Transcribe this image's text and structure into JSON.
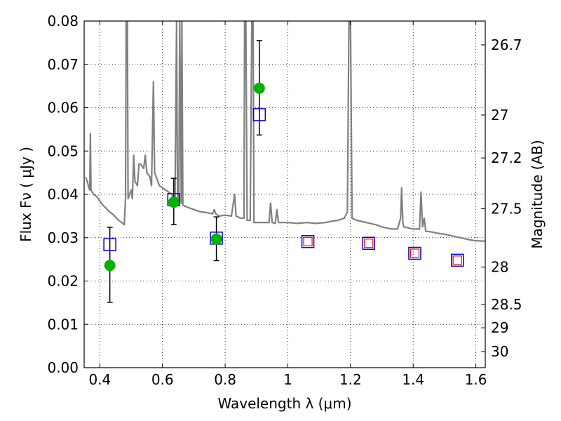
{
  "chart_data": {
    "type": "scatter",
    "xlabel": "Wavelength  λ (μm)",
    "ylabel": "Flux  Fν  ( μJy )",
    "y2label": "Magnitude (AB)",
    "xlim": [
      0.35,
      1.63
    ],
    "ylim": [
      0.0,
      0.08
    ],
    "grid": true,
    "x_ticks": [
      0.4,
      0.6,
      0.8,
      1.0,
      1.2,
      1.4,
      1.6
    ],
    "x_tick_labels": [
      "0.4",
      "0.6",
      "0.8",
      "1",
      "1.2",
      "1.4",
      "1.6"
    ],
    "y_ticks": [
      0.0,
      0.01,
      0.02,
      0.03,
      0.04,
      0.05,
      0.06,
      0.07,
      0.08
    ],
    "y_tick_labels": [
      "0.00",
      "0.01",
      "0.02",
      "0.03",
      "0.04",
      "0.05",
      "0.06",
      "0.07",
      "0.08"
    ],
    "mag_ticks": [
      {
        "label": "26.7",
        "flux": 0.0745
      },
      {
        "label": "27",
        "flux": 0.0583
      },
      {
        "label": "27.2",
        "flux": 0.0484
      },
      {
        "label": "27.5",
        "flux": 0.0367
      },
      {
        "label": "28",
        "flux": 0.0232
      },
      {
        "label": "28.5",
        "flux": 0.0146
      },
      {
        "label": "29",
        "flux": 0.0092
      },
      {
        "label": "30",
        "flux": 0.0037
      }
    ],
    "series": [
      {
        "kind": "spectrum",
        "color": "#808080",
        "points": [
          [
            0.355,
            0.044
          ],
          [
            0.36,
            0.043
          ],
          [
            0.365,
            0.0415
          ],
          [
            0.368,
            0.041
          ],
          [
            0.37,
            0.054
          ],
          [
            0.372,
            0.041
          ],
          [
            0.38,
            0.04
          ],
          [
            0.39,
            0.0395
          ],
          [
            0.4,
            0.0385
          ],
          [
            0.41,
            0.0375
          ],
          [
            0.42,
            0.0368
          ],
          [
            0.43,
            0.036
          ],
          [
            0.44,
            0.0355
          ],
          [
            0.45,
            0.0348
          ],
          [
            0.46,
            0.034
          ],
          [
            0.47,
            0.0335
          ],
          [
            0.478,
            0.033
          ],
          [
            0.482,
            0.039
          ],
          [
            0.484,
            0.08
          ],
          [
            0.488,
            0.08
          ],
          [
            0.49,
            0.039
          ],
          [
            0.5,
            0.041
          ],
          [
            0.504,
            0.039
          ],
          [
            0.508,
            0.049
          ],
          [
            0.512,
            0.043
          ],
          [
            0.52,
            0.042
          ],
          [
            0.525,
            0.047
          ],
          [
            0.53,
            0.047
          ],
          [
            0.54,
            0.046
          ],
          [
            0.545,
            0.049
          ],
          [
            0.55,
            0.045
          ],
          [
            0.56,
            0.044
          ],
          [
            0.565,
            0.042
          ],
          [
            0.571,
            0.066
          ],
          [
            0.575,
            0.045
          ],
          [
            0.58,
            0.044
          ],
          [
            0.59,
            0.042
          ],
          [
            0.6,
            0.0415
          ],
          [
            0.61,
            0.041
          ],
          [
            0.62,
            0.0405
          ],
          [
            0.63,
            0.04
          ],
          [
            0.635,
            0.039
          ],
          [
            0.64,
            0.0385
          ],
          [
            0.645,
            0.08
          ],
          [
            0.648,
            0.039
          ],
          [
            0.652,
            0.038
          ],
          [
            0.655,
            0.08
          ],
          [
            0.66,
            0.038
          ],
          [
            0.662,
            0.08
          ],
          [
            0.665,
            0.0375
          ],
          [
            0.68,
            0.037
          ],
          [
            0.7,
            0.0365
          ],
          [
            0.72,
            0.036
          ],
          [
            0.74,
            0.0358
          ],
          [
            0.76,
            0.0355
          ],
          [
            0.765,
            0.0365
          ],
          [
            0.77,
            0.0355
          ],
          [
            0.78,
            0.035
          ],
          [
            0.8,
            0.0352
          ],
          [
            0.82,
            0.035
          ],
          [
            0.83,
            0.04
          ],
          [
            0.835,
            0.035
          ],
          [
            0.85,
            0.0345
          ],
          [
            0.86,
            0.0345
          ],
          [
            0.862,
            0.08
          ],
          [
            0.866,
            0.08
          ],
          [
            0.87,
            0.034
          ],
          [
            0.88,
            0.034
          ],
          [
            0.885,
            0.08
          ],
          [
            0.889,
            0.08
          ],
          [
            0.892,
            0.0335
          ],
          [
            0.9,
            0.0335
          ],
          [
            0.92,
            0.0335
          ],
          [
            0.94,
            0.0335
          ],
          [
            0.945,
            0.038
          ],
          [
            0.95,
            0.0335
          ],
          [
            0.96,
            0.0333
          ],
          [
            0.965,
            0.0365
          ],
          [
            0.97,
            0.0335
          ],
          [
            1.0,
            0.0335
          ],
          [
            1.03,
            0.0333
          ],
          [
            1.06,
            0.0335
          ],
          [
            1.09,
            0.0333
          ],
          [
            1.12,
            0.0335
          ],
          [
            1.14,
            0.0338
          ],
          [
            1.16,
            0.034
          ],
          [
            1.18,
            0.0345
          ],
          [
            1.19,
            0.036
          ],
          [
            1.195,
            0.08
          ],
          [
            1.2,
            0.08
          ],
          [
            1.205,
            0.0345
          ],
          [
            1.22,
            0.034
          ],
          [
            1.25,
            0.0335
          ],
          [
            1.28,
            0.033
          ],
          [
            1.3,
            0.0325
          ],
          [
            1.33,
            0.032
          ],
          [
            1.35,
            0.032
          ],
          [
            1.36,
            0.0345
          ],
          [
            1.363,
            0.0415
          ],
          [
            1.367,
            0.0335
          ],
          [
            1.37,
            0.0325
          ],
          [
            1.4,
            0.032
          ],
          [
            1.42,
            0.032
          ],
          [
            1.425,
            0.0405
          ],
          [
            1.43,
            0.0325
          ],
          [
            1.435,
            0.0345
          ],
          [
            1.44,
            0.0315
          ],
          [
            1.46,
            0.0313
          ],
          [
            1.48,
            0.031
          ],
          [
            1.5,
            0.0308
          ],
          [
            1.52,
            0.0305
          ],
          [
            1.55,
            0.03
          ],
          [
            1.58,
            0.0295
          ],
          [
            1.6,
            0.0293
          ],
          [
            1.63,
            0.0292
          ]
        ]
      },
      {
        "kind": "observed",
        "color": "#00b300",
        "points": [
          {
            "x": 0.432,
            "y": 0.0236,
            "err_low": 0.0151,
            "err_high": 0.0324
          },
          {
            "x": 0.636,
            "y": 0.0382,
            "err_low": 0.033,
            "err_high": 0.0437
          },
          {
            "x": 0.772,
            "y": 0.0297,
            "err_low": 0.0247,
            "err_high": 0.0348
          },
          {
            "x": 0.909,
            "y": 0.0645,
            "err_low": 0.0537,
            "err_high": 0.0755
          }
        ]
      },
      {
        "kind": "model_blue",
        "color": "#0000cc",
        "points": [
          {
            "x": 0.432,
            "y": 0.0284
          },
          {
            "x": 0.636,
            "y": 0.0388
          },
          {
            "x": 0.772,
            "y": 0.0299
          },
          {
            "x": 0.909,
            "y": 0.0584
          },
          {
            "x": 1.064,
            "y": 0.0291
          },
          {
            "x": 1.258,
            "y": 0.0287
          },
          {
            "x": 1.405,
            "y": 0.0264
          },
          {
            "x": 1.541,
            "y": 0.0248
          }
        ]
      },
      {
        "kind": "model_red",
        "color": "#ff0000",
        "points": [
          {
            "x": 1.064,
            "y": 0.0291
          },
          {
            "x": 1.258,
            "y": 0.0287
          },
          {
            "x": 1.405,
            "y": 0.0264
          },
          {
            "x": 1.541,
            "y": 0.0248
          }
        ]
      }
    ]
  }
}
